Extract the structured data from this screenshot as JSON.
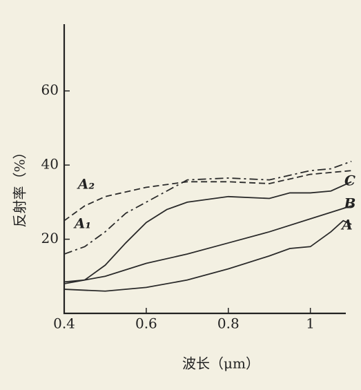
{
  "chart_data": {
    "type": "line",
    "x_label": "波长（μm）",
    "y_label": "反射率（%）",
    "xlim": [
      0.4,
      1.12
    ],
    "xticks": [
      0.4,
      0.6,
      0.8,
      1.0
    ],
    "ylim": [
      0,
      78
    ],
    "yticks": [
      20,
      40,
      60
    ],
    "series": [
      {
        "name": "A",
        "color": "#2a2a2a",
        "style": "solid",
        "x": [
          0.4,
          0.5,
          0.6,
          0.7,
          0.8,
          0.9,
          0.95,
          1.0,
          1.05,
          1.08,
          1.1
        ],
        "values": [
          6.5,
          6.0,
          7.0,
          9.0,
          12,
          15.5,
          17.5,
          18,
          22,
          25,
          24
        ]
      },
      {
        "name": "B",
        "color": "#2a2a2a",
        "style": "solid",
        "x": [
          0.4,
          0.5,
          0.6,
          0.7,
          0.8,
          0.9,
          1.0,
          1.1
        ],
        "values": [
          8,
          10,
          13.5,
          16,
          19,
          22,
          25.5,
          29
        ]
      },
      {
        "name": "C",
        "color": "#2a2a2a",
        "style": "solid",
        "x": [
          0.4,
          0.45,
          0.5,
          0.55,
          0.6,
          0.65,
          0.7,
          0.8,
          0.9,
          0.95,
          1.0,
          1.05,
          1.1
        ],
        "values": [
          8.5,
          9,
          13,
          19,
          24.5,
          28,
          30,
          31.5,
          31,
          32.5,
          32.5,
          33,
          35.5
        ]
      },
      {
        "name": "A₁",
        "color": "#2a2a2a",
        "style": "dashdot",
        "x": [
          0.4,
          0.45,
          0.5,
          0.55,
          0.6,
          0.65,
          0.7,
          0.8,
          0.9,
          1.0,
          1.05,
          1.1
        ],
        "values": [
          16,
          18,
          22,
          27,
          30,
          33,
          36,
          36.5,
          36,
          38.5,
          39,
          41
        ]
      },
      {
        "name": "A₂",
        "color": "#2a2a2a",
        "style": "dashed",
        "x": [
          0.4,
          0.45,
          0.5,
          0.6,
          0.7,
          0.8,
          0.9,
          1.0,
          1.1
        ],
        "values": [
          25,
          29,
          31.5,
          34,
          35.5,
          35.5,
          35,
          37.5,
          38.5
        ]
      }
    ]
  }
}
